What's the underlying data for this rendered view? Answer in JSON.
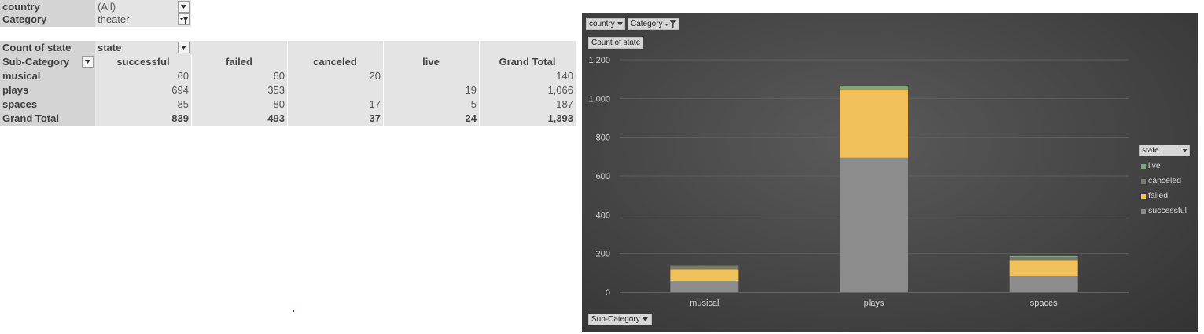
{
  "filters": {
    "country": {
      "label": "country",
      "value": "(All)"
    },
    "category": {
      "label": "Category",
      "value": "theater"
    }
  },
  "pivot": {
    "values_label": "Count of state",
    "columns_field": "state",
    "rows_field": "Sub-Category",
    "columns": [
      "successful",
      "failed",
      "canceled",
      "live",
      "Grand Total"
    ],
    "rows": [
      {
        "label": "musical",
        "cells": [
          "60",
          "60",
          "20",
          "",
          "140"
        ]
      },
      {
        "label": "plays",
        "cells": [
          "694",
          "353",
          "",
          "19",
          "1,066"
        ]
      },
      {
        "label": "spaces",
        "cells": [
          "85",
          "80",
          "17",
          "5",
          "187"
        ]
      }
    ],
    "total": {
      "label": "Grand Total",
      "cells": [
        "839",
        "493",
        "37",
        "24",
        "1,393"
      ]
    }
  },
  "chart_buttons": {
    "country": "country",
    "category": "Category",
    "values": "Count of state",
    "axis": "Sub-Category",
    "legend": "state"
  },
  "chart_data": {
    "type": "bar",
    "stacked": true,
    "categories": [
      "musical",
      "plays",
      "spaces"
    ],
    "series": [
      {
        "name": "successful",
        "values": [
          60,
          694,
          85
        ],
        "color": "#8c8c8c"
      },
      {
        "name": "failed",
        "values": [
          60,
          353,
          80
        ],
        "color": "#f0c05a"
      },
      {
        "name": "canceled",
        "values": [
          20,
          0,
          17
        ],
        "color": "#7a7a68"
      },
      {
        "name": "live",
        "values": [
          0,
          19,
          5
        ],
        "color": "#7fa77f"
      }
    ],
    "legend_order": [
      "live",
      "canceled",
      "failed",
      "successful"
    ],
    "ylim": [
      0,
      1200
    ],
    "yticks": [
      0,
      200,
      400,
      600,
      800,
      1000,
      1200
    ],
    "ytick_labels": [
      "0",
      "200",
      "400",
      "600",
      "800",
      "1,000",
      "1,200"
    ],
    "grid": true,
    "legend_position": "right"
  }
}
